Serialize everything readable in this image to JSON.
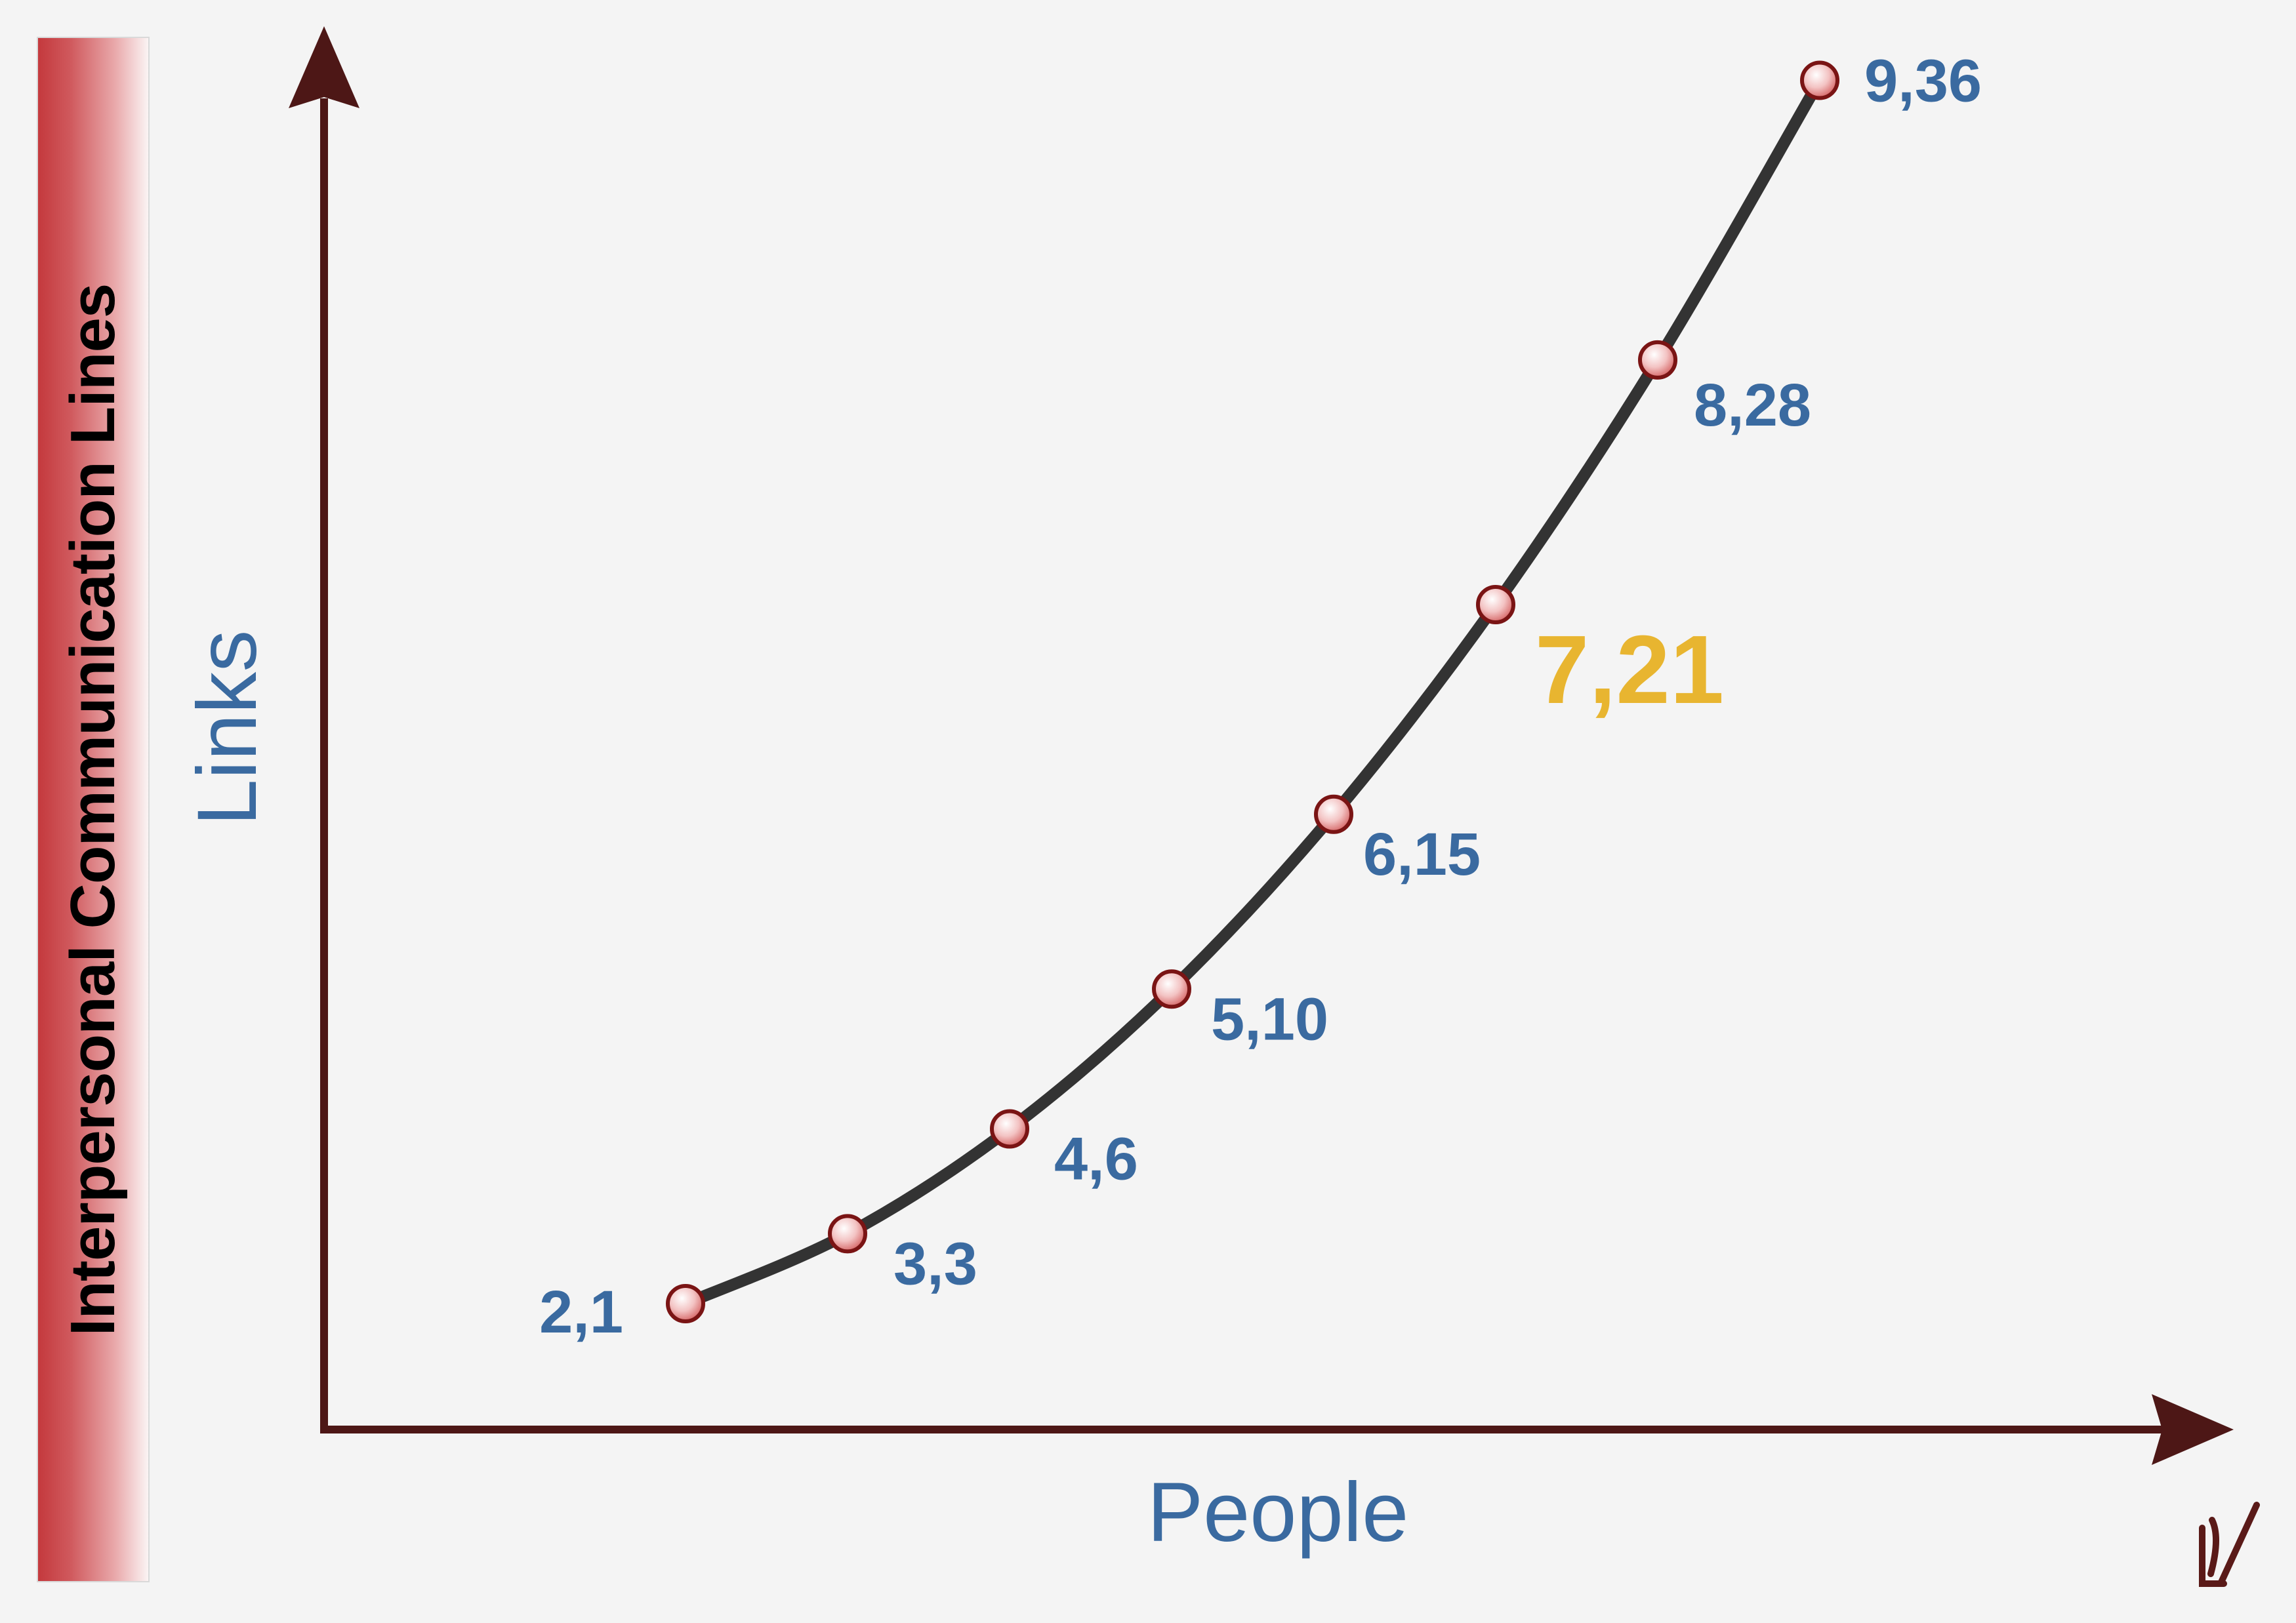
{
  "side_title": "Interpersonal Communication Lines",
  "colors": {
    "axis": "#4d1716",
    "curve": "#333333",
    "label": "#3a6aa0",
    "highlight": "#e8b530",
    "point_fill": "#f2c4c4",
    "point_stroke": "#7a1414"
  },
  "chart_data": {
    "type": "line",
    "xlabel": "People",
    "ylabel": "Links",
    "x": [
      2,
      3,
      4,
      5,
      6,
      7,
      8,
      9
    ],
    "y": [
      1,
      3,
      6,
      10,
      15,
      21,
      28,
      36
    ],
    "point_labels": [
      "2,1",
      "3,3",
      "4,6",
      "5,10",
      "6,15",
      "7,21",
      "8,28",
      "9,36"
    ],
    "highlight_label": "7,21",
    "grid": false
  },
  "logo_glyph": "√"
}
